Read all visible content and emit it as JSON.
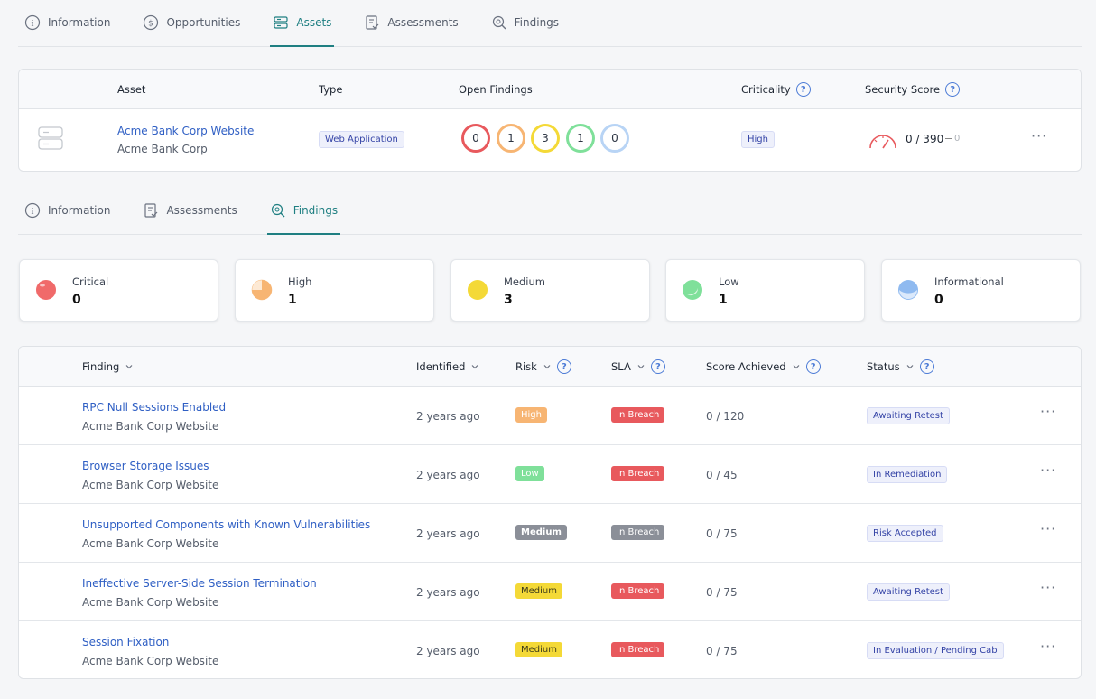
{
  "top_tabs": [
    {
      "label": "Information",
      "icon": "info-icon"
    },
    {
      "label": "Opportunities",
      "icon": "dollar-icon"
    },
    {
      "label": "Assets",
      "icon": "server-icon",
      "active": true
    },
    {
      "label": "Assessments",
      "icon": "clipboard-check-icon"
    },
    {
      "label": "Findings",
      "icon": "search-bug-icon"
    }
  ],
  "asset_table": {
    "headers": {
      "asset": "Asset",
      "type": "Type",
      "open_findings": "Open Findings",
      "criticality": "Criticality",
      "security_score": "Security Score"
    },
    "row": {
      "name": "Acme Bank Corp Website",
      "org": "Acme Bank Corp",
      "type": "Web Application",
      "open_findings": [
        {
          "count": "0",
          "color": "#e8595d"
        },
        {
          "count": "1",
          "color": "#f7b573"
        },
        {
          "count": "3",
          "color": "#f4d937"
        },
        {
          "count": "1",
          "color": "#7fe09a"
        },
        {
          "count": "0",
          "color": "#b8d4f5"
        }
      ],
      "criticality": "High",
      "score": "0 / 390",
      "score_delta": "0",
      "more": "···"
    }
  },
  "sub_tabs": [
    {
      "label": "Information",
      "icon": "info-icon"
    },
    {
      "label": "Assessments",
      "icon": "clipboard-check-icon"
    },
    {
      "label": "Findings",
      "icon": "search-bug-icon",
      "active": true
    }
  ],
  "severity_summary": [
    {
      "label": "Critical",
      "count": "0",
      "color": "#f06a6a",
      "level": 1.0
    },
    {
      "label": "High",
      "count": "1",
      "color": "#f7b573",
      "level": 0.75
    },
    {
      "label": "Medium",
      "count": "3",
      "color": "#f4d937",
      "level": 0.5
    },
    {
      "label": "Low",
      "count": "1",
      "color": "#7fe09a",
      "level": 0.25
    },
    {
      "label": "Informational",
      "count": "0",
      "color": "#8fbaf0",
      "level": 0.12
    }
  ],
  "findings_table": {
    "headers": {
      "finding": "Finding",
      "identified": "Identified",
      "risk": "Risk",
      "sla": "SLA",
      "score": "Score Achieved",
      "status": "Status"
    },
    "rows": [
      {
        "title": "RPC Null Sessions Enabled",
        "asset": "Acme Bank Corp Website",
        "identified": "2 years ago",
        "risk": "High",
        "risk_class": "risk-high",
        "sla": "In Breach",
        "sla_class": "sla",
        "score": "0 / 120",
        "status": "Awaiting Retest"
      },
      {
        "title": "Browser Storage Issues",
        "asset": "Acme Bank Corp Website",
        "identified": "2 years ago",
        "risk": "Low",
        "risk_class": "risk-low",
        "sla": "In Breach",
        "sla_class": "sla",
        "score": "0 / 45",
        "status": "In Remediation"
      },
      {
        "title": "Unsupported Components with Known Vulnerabilities",
        "asset": "Acme Bank Corp Website",
        "identified": "2 years ago",
        "risk": "Medium",
        "risk_class": "risk-medium-grey",
        "sla": "In Breach",
        "sla_class": "sla-grey",
        "score": "0 / 75",
        "status": "Risk Accepted"
      },
      {
        "title": "Ineffective Server-Side Session Termination",
        "asset": "Acme Bank Corp Website",
        "identified": "2 years ago",
        "risk": "Medium",
        "risk_class": "risk-medium",
        "sla": "In Breach",
        "sla_class": "sla",
        "score": "0 / 75",
        "status": "Awaiting Retest"
      },
      {
        "title": "Session Fixation",
        "asset": "Acme Bank Corp Website",
        "identified": "2 years ago",
        "risk": "Medium",
        "risk_class": "risk-medium",
        "sla": "In Breach",
        "sla_class": "sla",
        "score": "0 / 75",
        "status": "In Evaluation / Pending Cab"
      }
    ],
    "more": "···"
  }
}
